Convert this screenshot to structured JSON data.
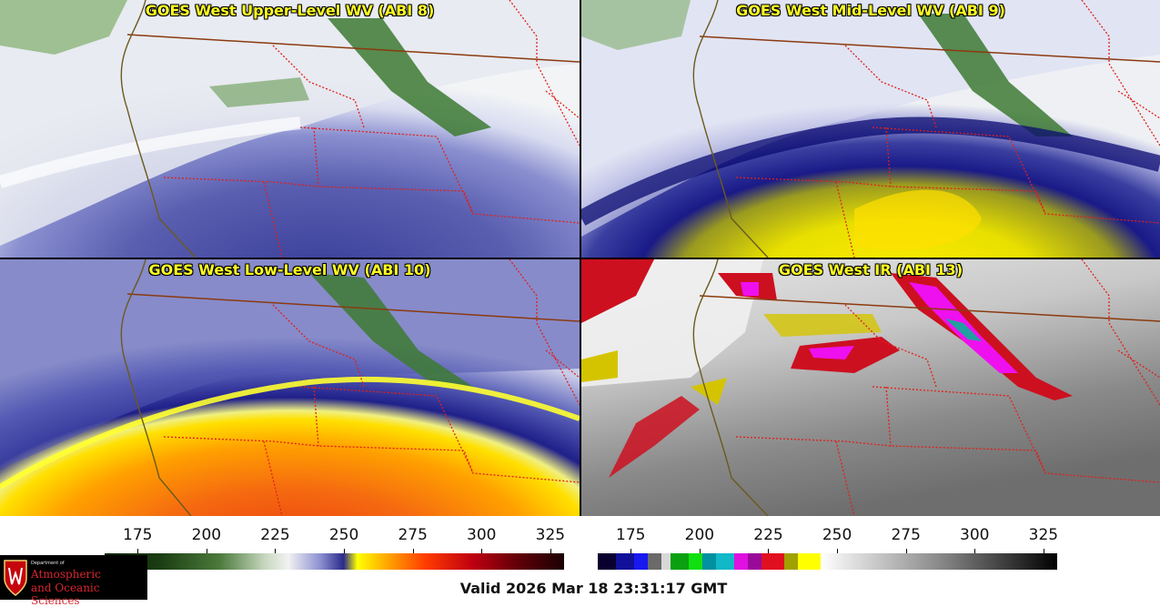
{
  "panels": [
    {
      "title": "GOES West Upper-Level WV (ABI 8)"
    },
    {
      "title": "GOES West Mid-Level WV (ABI 9)"
    },
    {
      "title": "GOES West Low-Level WV (ABI 10)"
    },
    {
      "title": "GOES West IR (ABI 13)"
    }
  ],
  "colorbars": [
    {
      "name": "wv-colorbar",
      "ticks": [
        "175",
        "200",
        "225",
        "250",
        "275",
        "300",
        "325"
      ],
      "tick_values": [
        175,
        200,
        225,
        250,
        275,
        300,
        325
      ],
      "range": [
        163,
        330
      ]
    },
    {
      "name": "ir-colorbar",
      "ticks": [
        "175",
        "200",
        "225",
        "250",
        "275",
        "300",
        "325"
      ],
      "tick_values": [
        175,
        200,
        225,
        250,
        275,
        300,
        325
      ],
      "range": [
        163,
        330
      ]
    }
  ],
  "logo": {
    "dept": "Department of",
    "line1": "Atmospheric",
    "line2": "and Oceanic Sciences"
  },
  "valid_time": "Valid 2026 Mar 18 23:31:17 GMT",
  "colors": {
    "title": "#ffff22",
    "border_state": "#e0201a",
    "border_country": "#8b3a0f",
    "coast": "#6b5a1e"
  }
}
